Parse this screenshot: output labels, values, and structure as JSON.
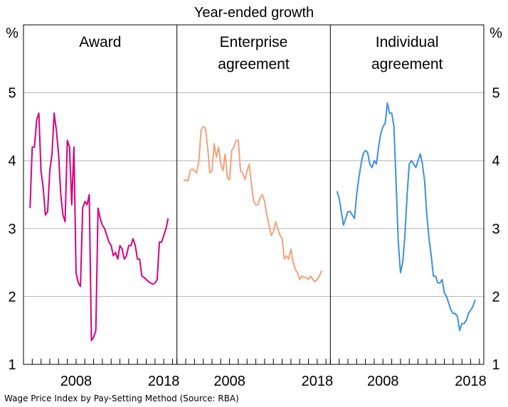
{
  "caption": "Wage Price Index by Pay-Setting Method (Source: RBA)",
  "chart_data": {
    "type": "line",
    "title": "Year-ended growth",
    "unit_left": "%",
    "unit_right": "%",
    "ylim": [
      1,
      6
    ],
    "yticks": [
      1,
      2,
      3,
      4,
      5
    ],
    "xlim": [
      2002,
      2019.5
    ],
    "xticks": [
      "2008",
      "2018"
    ],
    "grid": true,
    "panels": [
      {
        "title_lines": [
          "Award"
        ],
        "color": "#d6007f",
        "x": [
          2002.75,
          2003.0,
          2003.25,
          2003.5,
          2003.75,
          2004.0,
          2004.25,
          2004.5,
          2004.75,
          2005.0,
          2005.25,
          2005.5,
          2005.75,
          2006.0,
          2006.25,
          2006.5,
          2006.75,
          2007.0,
          2007.25,
          2007.5,
          2007.75,
          2008.0,
          2008.25,
          2008.5,
          2008.75,
          2009.0,
          2009.25,
          2009.5,
          2009.75,
          2010.0,
          2010.25,
          2010.5,
          2010.75,
          2011.0,
          2011.25,
          2011.5,
          2011.75,
          2012.0,
          2012.25,
          2012.5,
          2012.75,
          2013.0,
          2013.25,
          2013.5,
          2013.75,
          2014.0,
          2014.25,
          2014.5,
          2014.75,
          2015.0,
          2015.25,
          2015.5,
          2015.75,
          2016.0,
          2016.25,
          2016.5,
          2016.75,
          2017.0,
          2017.25,
          2017.5,
          2017.75,
          2018.0,
          2018.25,
          2018.5
        ],
        "values": [
          3.3,
          4.2,
          4.2,
          4.6,
          4.7,
          3.85,
          3.6,
          3.2,
          3.25,
          3.85,
          4.1,
          4.7,
          4.45,
          4.1,
          3.5,
          3.2,
          3.1,
          4.3,
          4.2,
          3.35,
          4.2,
          2.35,
          2.2,
          2.15,
          3.3,
          3.4,
          3.35,
          3.5,
          1.35,
          1.4,
          1.5,
          3.3,
          3.15,
          3.05,
          3.0,
          2.9,
          2.8,
          2.75,
          2.6,
          2.65,
          2.55,
          2.75,
          2.7,
          2.55,
          2.6,
          2.75,
          2.75,
          2.85,
          2.75,
          2.55,
          2.55,
          2.3,
          2.28,
          2.25,
          2.22,
          2.2,
          2.18,
          2.2,
          2.25,
          2.8,
          2.8,
          2.9,
          3.0,
          3.15
        ]
      },
      {
        "title_lines": [
          "Enterprise",
          "agreement"
        ],
        "color": "#f5a17a",
        "x": [
          2002.75,
          2003.0,
          2003.25,
          2003.5,
          2003.75,
          2004.0,
          2004.25,
          2004.5,
          2004.75,
          2005.0,
          2005.25,
          2005.5,
          2005.75,
          2006.0,
          2006.25,
          2006.5,
          2006.75,
          2007.0,
          2007.25,
          2007.5,
          2007.75,
          2008.0,
          2008.25,
          2008.5,
          2008.75,
          2009.0,
          2009.25,
          2009.5,
          2009.75,
          2010.0,
          2010.25,
          2010.5,
          2010.75,
          2011.0,
          2011.25,
          2011.5,
          2011.75,
          2012.0,
          2012.25,
          2012.5,
          2012.75,
          2013.0,
          2013.25,
          2013.5,
          2013.75,
          2014.0,
          2014.25,
          2014.5,
          2014.75,
          2015.0,
          2015.25,
          2015.5,
          2015.75,
          2016.0,
          2016.25,
          2016.5,
          2016.75,
          2017.0,
          2017.25,
          2017.5,
          2017.75,
          2018.0,
          2018.25,
          2018.5
        ],
        "values": [
          3.7,
          3.72,
          3.7,
          3.85,
          3.88,
          3.85,
          3.82,
          4.0,
          4.45,
          4.5,
          4.48,
          4.2,
          3.82,
          3.85,
          4.25,
          4.05,
          4.2,
          3.95,
          3.85,
          4.1,
          3.75,
          3.72,
          4.15,
          4.2,
          4.3,
          4.3,
          3.85,
          3.82,
          3.72,
          3.85,
          3.95,
          3.65,
          3.4,
          3.35,
          3.35,
          3.45,
          3.5,
          3.4,
          3.2,
          3.05,
          2.9,
          2.95,
          3.1,
          3.0,
          2.9,
          2.85,
          2.55,
          2.6,
          2.55,
          2.7,
          2.5,
          2.4,
          2.35,
          2.25,
          2.3,
          2.28,
          2.28,
          2.25,
          2.3,
          2.25,
          2.22,
          2.25,
          2.3,
          2.38
        ]
      },
      {
        "title_lines": [
          "Individual",
          "agreement"
        ],
        "color": "#3d8fe0",
        "x": [
          2002.75,
          2003.0,
          2003.25,
          2003.5,
          2003.75,
          2004.0,
          2004.25,
          2004.5,
          2004.75,
          2005.0,
          2005.25,
          2005.5,
          2005.75,
          2006.0,
          2006.25,
          2006.5,
          2006.75,
          2007.0,
          2007.25,
          2007.5,
          2007.75,
          2008.0,
          2008.25,
          2008.5,
          2008.75,
          2009.0,
          2009.25,
          2009.5,
          2009.75,
          2010.0,
          2010.25,
          2010.5,
          2010.75,
          2011.0,
          2011.25,
          2011.5,
          2011.75,
          2012.0,
          2012.25,
          2012.5,
          2012.75,
          2013.0,
          2013.25,
          2013.5,
          2013.75,
          2014.0,
          2014.25,
          2014.5,
          2014.75,
          2015.0,
          2015.25,
          2015.5,
          2015.75,
          2016.0,
          2016.25,
          2016.5,
          2016.75,
          2017.0,
          2017.25,
          2017.5,
          2017.75,
          2018.0,
          2018.25,
          2018.5
        ],
        "values": [
          3.55,
          3.45,
          3.25,
          3.05,
          3.15,
          3.25,
          3.25,
          3.2,
          3.15,
          3.5,
          3.75,
          3.95,
          4.1,
          4.15,
          4.12,
          3.95,
          3.9,
          4.0,
          3.95,
          4.2,
          4.4,
          4.5,
          4.55,
          4.85,
          4.7,
          4.7,
          4.5,
          3.65,
          2.8,
          2.35,
          2.5,
          2.9,
          3.5,
          3.95,
          4.0,
          3.95,
          3.9,
          4.0,
          4.1,
          3.95,
          3.7,
          3.2,
          2.85,
          2.6,
          2.3,
          2.3,
          2.2,
          2.2,
          2.25,
          2.05,
          2.0,
          1.9,
          1.8,
          1.75,
          1.75,
          1.7,
          1.5,
          1.6,
          1.6,
          1.65,
          1.75,
          1.8,
          1.85,
          1.95
        ]
      }
    ]
  }
}
